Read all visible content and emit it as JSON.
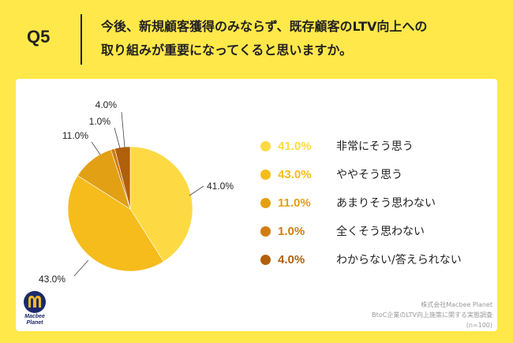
{
  "header": {
    "q_label": "Q5",
    "question_line1": "今後、新規顧客獲得のみならず、既存顧客のLTV向上への",
    "question_line2": "取り組みが重要になってくると思いますか。"
  },
  "chart_data": {
    "type": "pie",
    "title": "今後、新規顧客獲得のみならず、既存顧客のLTV向上への取り組みが重要になってくると思いますか。",
    "unit": "%",
    "slices": [
      {
        "label": "非常にそう思う",
        "value": 41.0,
        "pct_label": "41.0%",
        "color": "#FDDA44"
      },
      {
        "label": "ややそう思う",
        "value": 43.0,
        "pct_label": "43.0%",
        "color": "#F6BC1C"
      },
      {
        "label": "あまりそう思わない",
        "value": 11.0,
        "pct_label": "11.0%",
        "color": "#E2A014"
      },
      {
        "label": "全くそう思わない",
        "value": 1.0,
        "pct_label": "1.0%",
        "color": "#D07C10"
      },
      {
        "label": "わからない/答えられない",
        "value": 4.0,
        "pct_label": "4.0%",
        "color": "#B0600B"
      }
    ],
    "start": "12 o'clock",
    "direction": "clockwise",
    "legend_position": "right"
  },
  "branding": {
    "logo_line1": "Macbee",
    "logo_line2": "Planet",
    "logo_primary": "#1B2A6B",
    "logo_accent": "#F6BC1C"
  },
  "source": {
    "company": "株式会社Macbee Planet",
    "survey": "BtoC企業のLTV向上施策に関する実態調査",
    "sample": "(n=100)"
  }
}
